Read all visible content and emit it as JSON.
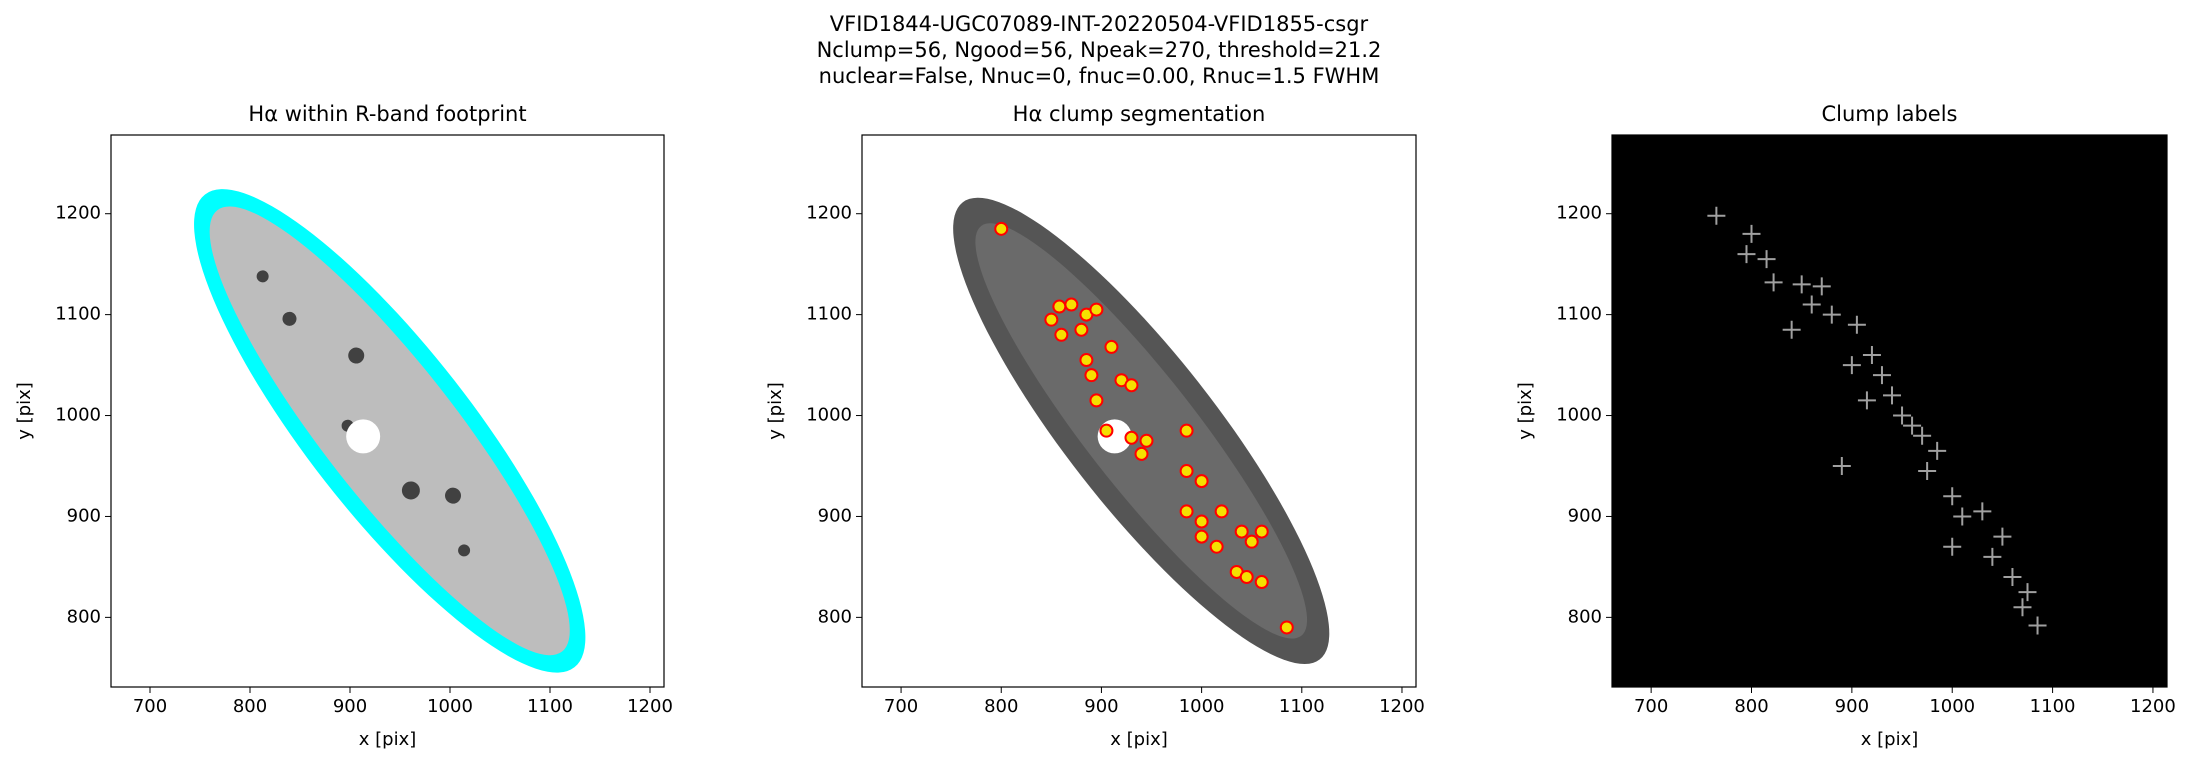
{
  "figure": {
    "title_lines": [
      "VFID1844-UGC07089-INT-20220504-VFID1855-csgr",
      "Nclump=56, Ngood=56, Npeak=270, threshold=21.2",
      "nuclear=False, Nnuc=0, fnuc=0.00, Rnuc=1.5 FWHM"
    ]
  },
  "chart_data": [
    {
      "type": "image",
      "style": "footprint",
      "title": "Hα within R-band footprint",
      "x_label": "x [pix]",
      "y_label": "y [pix]",
      "xlim": [
        661,
        1214
      ],
      "ylim": [
        731,
        1278
      ],
      "xticks": [
        700,
        800,
        900,
        1000,
        1100,
        1200
      ],
      "yticks": [
        800,
        900,
        1000,
        1100,
        1200
      ],
      "background": "#ffffff"
    },
    {
      "type": "scatter",
      "style": "segmentation",
      "title": "Hα clump segmentation",
      "x_label": "x [pix]",
      "y_label": "y [pix]",
      "xlim": [
        661,
        1214
      ],
      "ylim": [
        731,
        1278
      ],
      "xticks": [
        700,
        800,
        900,
        1000,
        1100,
        1200
      ],
      "yticks": [
        800,
        900,
        1000,
        1100,
        1200
      ],
      "background": "#ffffff",
      "marker": "circle",
      "color": "#ff0000",
      "x": [
        800,
        850,
        858,
        870,
        885,
        895,
        860,
        880,
        910,
        885,
        890,
        920,
        930,
        895,
        905,
        930,
        945,
        940,
        985,
        985,
        1000,
        985,
        1000,
        1020,
        1000,
        1015,
        1040,
        1060,
        1050,
        1035,
        1045,
        1060,
        1085
      ],
      "values": [
        1185,
        1095,
        1108,
        1110,
        1100,
        1105,
        1080,
        1085,
        1068,
        1055,
        1040,
        1035,
        1030,
        1015,
        985,
        978,
        975,
        962,
        985,
        945,
        935,
        905,
        895,
        905,
        880,
        870,
        885,
        885,
        875,
        845,
        840,
        835,
        790
      ]
    },
    {
      "type": "scatter",
      "style": "labels",
      "title": "Clump labels",
      "x_label": "x [pix]",
      "y_label": "y [pix]",
      "xlim": [
        661,
        1214
      ],
      "ylim": [
        731,
        1278
      ],
      "xticks": [
        700,
        800,
        900,
        1000,
        1100,
        1200
      ],
      "yticks": [
        800,
        900,
        1000,
        1100,
        1200
      ],
      "background": "#000000",
      "marker": "plus",
      "color": "#a0a0a0",
      "x": [
        765,
        800,
        795,
        815,
        822,
        850,
        870,
        840,
        860,
        880,
        905,
        900,
        920,
        930,
        940,
        950,
        915,
        960,
        970,
        985,
        975,
        890,
        1000,
        1010,
        1030,
        1050,
        1000,
        1040,
        1060,
        1075,
        1085,
        1070
      ],
      "values": [
        1198,
        1180,
        1160,
        1155,
        1132,
        1130,
        1128,
        1085,
        1110,
        1100,
        1090,
        1050,
        1060,
        1040,
        1020,
        1000,
        1015,
        990,
        980,
        965,
        945,
        950,
        920,
        900,
        905,
        880,
        870,
        860,
        840,
        825,
        792,
        810
      ]
    }
  ]
}
